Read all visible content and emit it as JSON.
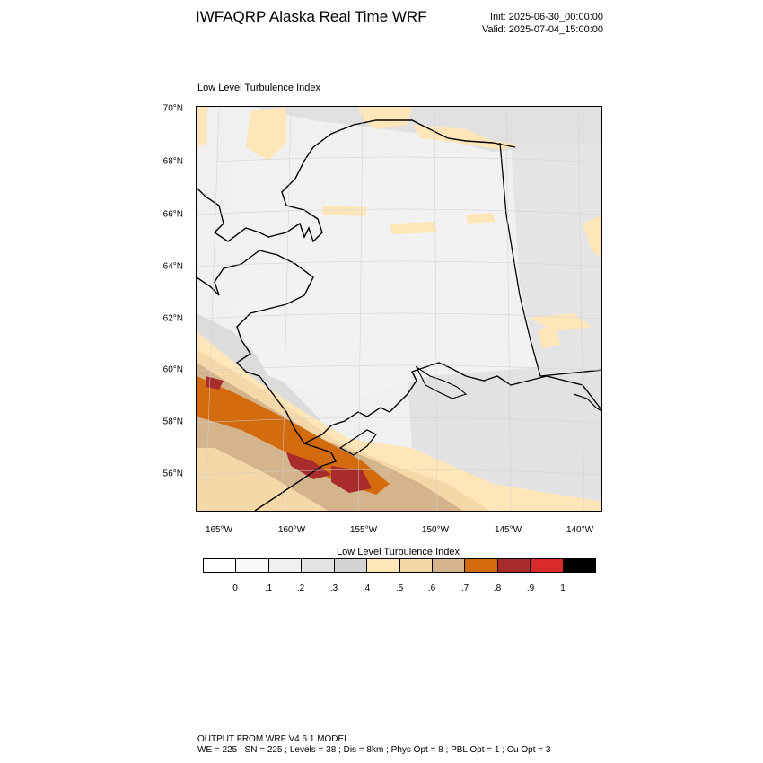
{
  "header": {
    "title": "IWFAQRP Alaska Real Time WRF",
    "init": "Init: 2025-06-30_00:00:00",
    "valid": "Valid: 2025-07-04_15:00:00"
  },
  "map": {
    "subtitle": "Low Level Turbulence Index",
    "lat_labels": [
      "70°N",
      "68°N",
      "66°N",
      "64°N",
      "62°N",
      "60°N",
      "58°N",
      "56°N"
    ],
    "lon_labels": [
      "165°W",
      "160°W",
      "155°W",
      "150°W",
      "145°W",
      "140°W"
    ],
    "coastline_color": "#000000",
    "border_color": "#000000"
  },
  "colorbar": {
    "title": "Low Level Turbulence Index",
    "colors": [
      "#ffffff",
      "#f9f9f9",
      "#f0f0f0",
      "#e3e3e3",
      "#d4d4d4",
      "#ffe6b8",
      "#f5d8a8",
      "#d4b48c",
      "#d26b0e",
      "#a82c2c",
      "#d92a2a",
      "#000000"
    ],
    "labels": [
      "0",
      ".1",
      ".2",
      ".3",
      ".4",
      ".5",
      ".6",
      ".7",
      ".8",
      ".9",
      "1"
    ]
  },
  "footer": {
    "line1": "OUTPUT FROM WRF V4.6.1 MODEL",
    "line2": "WE = 225 ; SN = 225 ; Levels = 38 ; Dis = 8km ; Phys Opt = 8 ; PBL Opt = 1 ; Cu Opt = 3"
  }
}
